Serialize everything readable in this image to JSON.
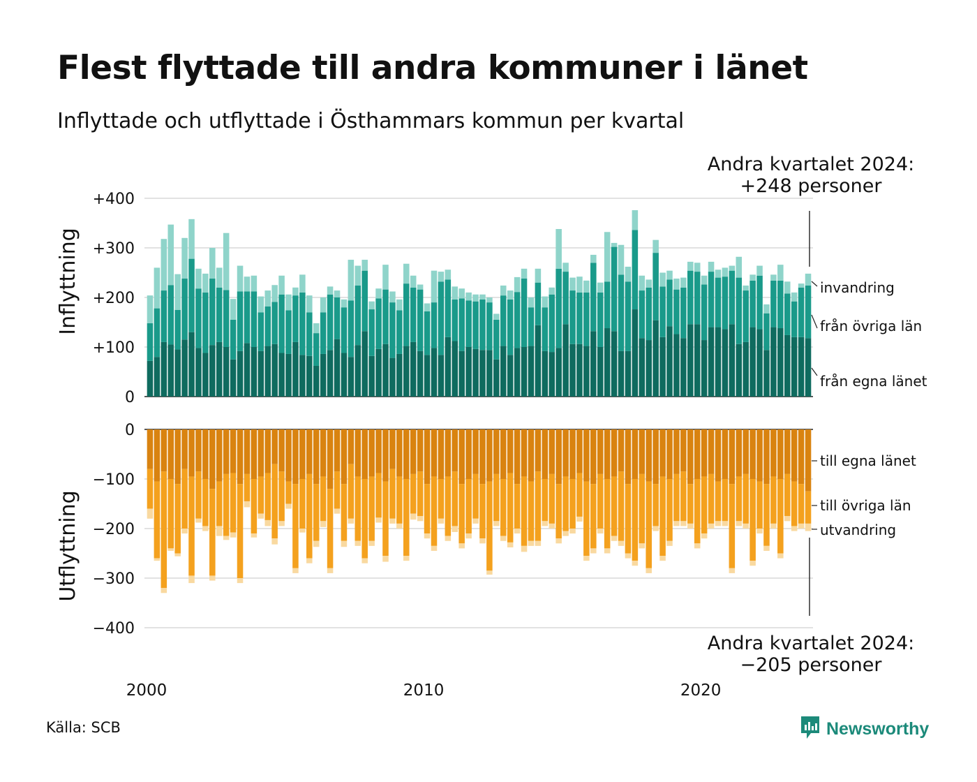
{
  "title": "Flest flyttade till andra kommuner i länet",
  "subtitle": "Inflyttade och utflyttade i Östhammars kommun per kvartal",
  "source": "Källa: SCB",
  "brand": "Newsworthy",
  "colors": {
    "in_own": "#0f6b5f",
    "in_other": "#1a9a8a",
    "in_immig": "#8fd4ca",
    "out_own": "#d98310",
    "out_other": "#f4a11e",
    "out_emig": "#f9d9a0",
    "grid": "#e2e2e2",
    "brand": "#1c8a7a"
  },
  "chart_data": {
    "type": "bar",
    "stacked": true,
    "x_start": "2000 Q1",
    "x_ticks": [
      "2000",
      "2010",
      "2020"
    ],
    "panels": [
      {
        "ylabel": "Inflyttning",
        "yticks": [
          "+400",
          "+300",
          "+200",
          "+100",
          "0"
        ],
        "ylim": [
          0,
          400
        ],
        "legend": [
          "invandring",
          "från övriga län",
          "från egna länet"
        ],
        "annotation": [
          "Andra kvartalet 2024:",
          "+248 personer"
        ],
        "series": [
          {
            "name": "från egna länet",
            "values": [
              72,
              80,
              110,
              105,
              95,
              115,
              130,
              98,
              88,
              104,
              110,
              100,
              75,
              92,
              108,
              100,
              92,
              102,
              106,
              88,
              86,
              110,
              84,
              82,
              62,
              86,
              94,
              116,
              88,
              80,
              104,
              132,
              82,
              96,
              106,
              78,
              86,
              102,
              110,
              92,
              84,
              98,
              84,
              120,
              112,
              92,
              100,
              96,
              94,
              94,
              75,
              102,
              84,
              98,
              100,
              102,
              144,
              92,
              90,
              98,
              146,
              106,
              106,
              102,
              132,
              100,
              138,
              132,
              92,
              92,
              176,
              118,
              114,
              154,
              120,
              142,
              126,
              118,
              146,
              146,
              114,
              140,
              140,
              136,
              146,
              106,
              110,
              140,
              136,
              94,
              140,
              138,
              124,
              120,
              120,
              118
            ]
          },
          {
            "name": "från övriga län",
            "values": [
              76,
              98,
              104,
              120,
              80,
              123,
              148,
              120,
              122,
              134,
              110,
              115,
              80,
              120,
              104,
              112,
              78,
              80,
              85,
              118,
              88,
              94,
              126,
              88,
              66,
              84,
              112,
              84,
              92,
              114,
              120,
              122,
              94,
              102,
              110,
              112,
              88,
              126,
              110,
              124,
              88,
              92,
              148,
              116,
              84,
              106,
              94,
              96,
              102,
              96,
              80,
              102,
              112,
              113,
              138,
              78,
              86,
              88,
              116,
              160,
              106,
              108,
              104,
              108,
              138,
              110,
              94,
              170,
              154,
              140,
              160,
              96,
              106,
              136,
              102,
              94,
              90,
              102,
              108,
              106,
              112,
              112,
              100,
              106,
              108,
              134,
              104,
              94,
              108,
              74,
              94,
              96,
              84,
              72,
              100,
              106
            ]
          },
          {
            "name": "invandring",
            "values": [
              56,
              82,
              104,
              122,
              72,
              82,
              80,
              40,
              38,
              62,
              40,
              115,
              42,
              52,
              30,
              32,
              32,
              32,
              34,
              38,
              32,
              16,
              36,
              34,
              20,
              30,
              16,
              14,
              16,
              82,
              40,
              22,
              16,
              20,
              50,
              22,
              22,
              40,
              24,
              10,
              16,
              64,
              20,
              20,
              26,
              20,
              16,
              14,
              10,
              10,
              12,
              20,
              18,
              30,
              20,
              20,
              28,
              22,
              14,
              80,
              18,
              26,
              32,
              24,
              16,
              20,
              100,
              8,
              60,
              30,
              40,
              30,
              16,
              26,
              28,
              18,
              22,
              20,
              18,
              18,
              18,
              20,
              16,
              18,
              10,
              42,
              10,
              12,
              20,
              18,
              12,
              32,
              24,
              18,
              8,
              24
            ]
          }
        ]
      },
      {
        "ylabel": "Utflyttning",
        "yticks": [
          "0",
          "−100",
          "−200",
          "−300",
          "−400"
        ],
        "ylim": [
          -400,
          0
        ],
        "legend": [
          "till egna länet",
          "till övriga län",
          "utvandring"
        ],
        "annotation": [
          "Andra kvartalet 2024:",
          "−205 personer"
        ],
        "series": [
          {
            "name": "till egna länet",
            "values": [
              -80,
              -105,
              -85,
              -100,
              -110,
              -80,
              -95,
              -85,
              -100,
              -120,
              -105,
              -90,
              -88,
              -110,
              -90,
              -100,
              -95,
              -88,
              -70,
              -85,
              -105,
              -110,
              -100,
              -90,
              -110,
              -95,
              -120,
              -85,
              -110,
              -70,
              -95,
              -100,
              -95,
              -88,
              -105,
              -80,
              -95,
              -100,
              -90,
              -85,
              -110,
              -95,
              -100,
              -95,
              -85,
              -110,
              -100,
              -90,
              -110,
              -105,
              -90,
              -100,
              -88,
              -110,
              -95,
              -105,
              -85,
              -100,
              -90,
              -110,
              -95,
              -100,
              -88,
              -105,
              -110,
              -90,
              -100,
              -95,
              -85,
              -110,
              -100,
              -90,
              -105,
              -110,
              -95,
              -100,
              -90,
              -85,
              -110,
              -100,
              -95,
              -90,
              -105,
              -100,
              -110,
              -95,
              -90,
              -100,
              -105,
              -110,
              -95,
              -100,
              -90,
              -105,
              -110,
              -125
            ]
          },
          {
            "name": "till övriga län",
            "values": [
              -80,
              -155,
              -235,
              -140,
              -140,
              -120,
              -200,
              -95,
              -95,
              -175,
              -90,
              -125,
              -120,
              -190,
              -55,
              -110,
              -75,
              -95,
              -150,
              -100,
              -45,
              -170,
              -100,
              -170,
              -115,
              -90,
              -160,
              -75,
              -115,
              -110,
              -130,
              -160,
              -130,
              -90,
              -150,
              -100,
              -95,
              -155,
              -80,
              -90,
              -100,
              -140,
              -80,
              -120,
              -110,
              -120,
              -110,
              -90,
              -110,
              -180,
              -95,
              -115,
              -140,
              -90,
              -140,
              -120,
              -140,
              -85,
              -100,
              -110,
              -110,
              -100,
              -88,
              -150,
              -130,
              -110,
              -140,
              -120,
              -140,
              -140,
              -165,
              -140,
              -175,
              -85,
              -160,
              -125,
              -95,
              -100,
              -80,
              -130,
              -115,
              -100,
              -80,
              -85,
              -170,
              -90,
              -100,
              -165,
              -95,
              -125,
              -95,
              -150,
              -85,
              -90,
              -80,
              -65
            ]
          },
          {
            "name": "utvandring",
            "values": [
              -20,
              -5,
              -10,
              -5,
              -6,
              -10,
              -15,
              -8,
              -10,
              -10,
              -20,
              -8,
              -10,
              -10,
              -12,
              -8,
              -10,
              -12,
              -12,
              -10,
              -10,
              -10,
              -8,
              -10,
              -12,
              -12,
              -10,
              -10,
              -12,
              -10,
              -10,
              -10,
              -10,
              -10,
              -12,
              -10,
              -10,
              -10,
              -12,
              -10,
              -10,
              -10,
              -10,
              -10,
              -12,
              -10,
              -10,
              -10,
              -10,
              -8,
              -10,
              -10,
              -10,
              -10,
              -12,
              -10,
              -10,
              -10,
              -10,
              -10,
              -10,
              -10,
              -10,
              -10,
              -10,
              -10,
              -10,
              -10,
              -10,
              -10,
              -10,
              -10,
              -10,
              -10,
              -10,
              -10,
              -10,
              -10,
              -10,
              -10,
              -10,
              -10,
              -10,
              -10,
              -10,
              -10,
              -10,
              -10,
              -10,
              -10,
              -10,
              -10,
              -10,
              -10,
              -10,
              -15
            ]
          }
        ]
      }
    ]
  }
}
